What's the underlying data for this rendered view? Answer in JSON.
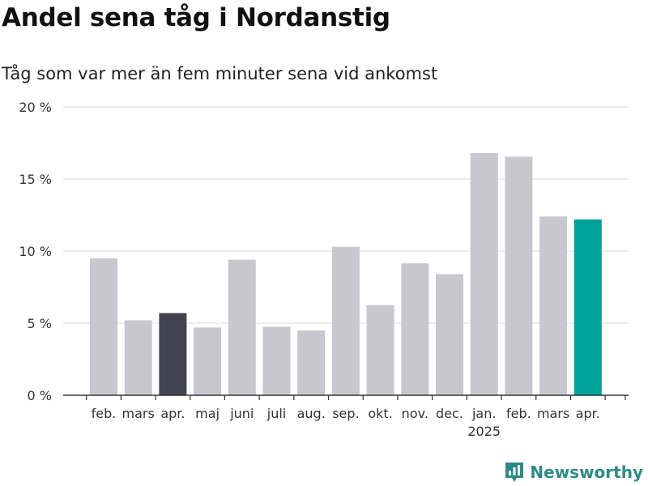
{
  "title": "Andel sena tåg i Nordanstig",
  "subtitle": "Tåg som var mer än fem minuter sena vid ankomst",
  "logo": {
    "text": "Newsworthy",
    "icon": "bar-chart-logo-icon"
  },
  "colors": {
    "default_bar": "#c8c7d0",
    "highlight_dark": "#43424f",
    "highlight_accent": "#00a398"
  },
  "chart_data": {
    "type": "bar",
    "title": "",
    "xlabel": "",
    "ylabel": "",
    "ylim": [
      0,
      20
    ],
    "yticks": [
      0,
      5,
      10,
      15,
      20
    ],
    "ytick_labels": [
      "0 %",
      "5 %",
      "10 %",
      "15 %",
      "20 %"
    ],
    "grid": true,
    "categories": [
      "feb.",
      "mars",
      "apr.",
      "maj",
      "juni",
      "juli",
      "aug.",
      "sep.",
      "okt.",
      "nov.",
      "dec.",
      "jan.",
      "feb.",
      "mars",
      "apr."
    ],
    "year_labels": [
      {
        "category_index": 11,
        "label": "2025"
      }
    ],
    "values": [
      9.5,
      5.2,
      5.7,
      4.7,
      9.4,
      4.75,
      4.5,
      10.3,
      6.25,
      9.15,
      8.4,
      16.8,
      16.55,
      12.4,
      12.2
    ],
    "highlight": {
      "2": "highlight_dark",
      "14": "highlight_accent"
    }
  }
}
